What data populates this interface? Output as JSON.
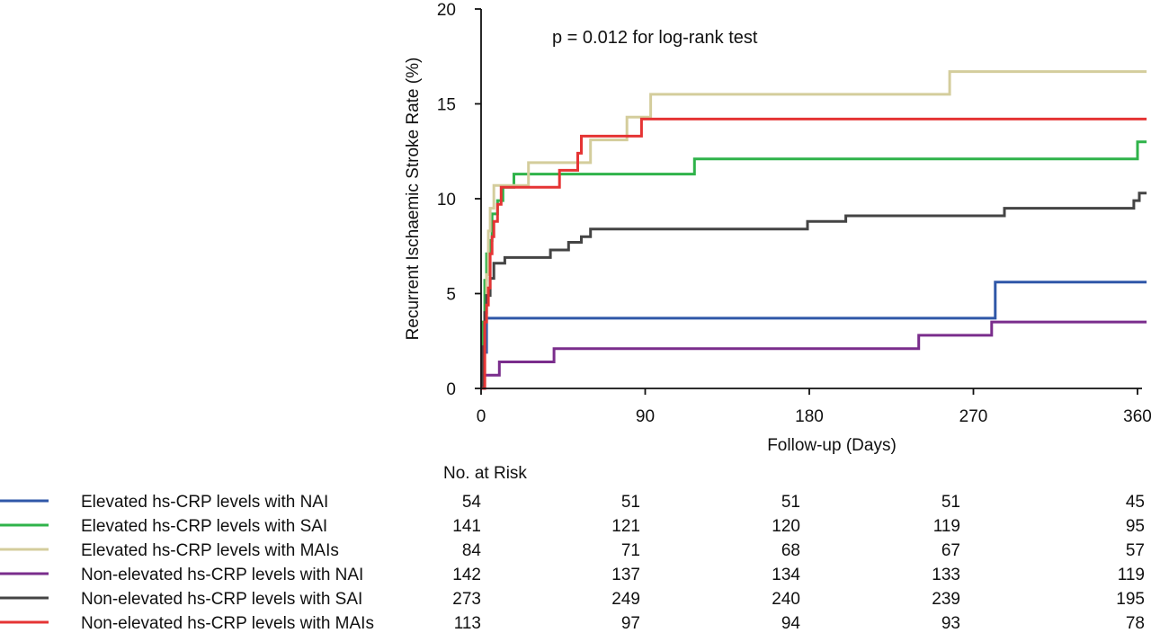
{
  "chart_data": {
    "type": "line",
    "subtype": "kaplan-meier step",
    "ylabel": "Recurrent Ischaemic Stroke Rate  (%)",
    "xlabel": "Follow-up (Days)",
    "annotation": "p = 0.012 for log-rank test",
    "xlim": [
      0,
      365
    ],
    "ylim": [
      0,
      20
    ],
    "x_ticks": [
      0,
      90,
      180,
      270,
      360
    ],
    "y_ticks": [
      0,
      5,
      10,
      15,
      20
    ],
    "grid": false,
    "legend_position": "bottom-left",
    "risk_table_title": "No. at Risk",
    "risk_table_times": [
      0,
      90,
      180,
      270,
      360
    ],
    "series": [
      {
        "name": "Elevated hs-CRP levels with NAI",
        "color": "#2f57a8",
        "at_risk": [
          54,
          51,
          51,
          51,
          45
        ],
        "points": [
          [
            0,
            0
          ],
          [
            1,
            1.9
          ],
          [
            3,
            3.7
          ],
          [
            282,
            3.7
          ],
          [
            282,
            5.6
          ],
          [
            365,
            5.6
          ]
        ]
      },
      {
        "name": "Elevated hs-CRP levels with SAI",
        "color": "#2fb34a",
        "at_risk": [
          141,
          121,
          120,
          119,
          95
        ],
        "points": [
          [
            0,
            0
          ],
          [
            1,
            3.5
          ],
          [
            2,
            5.7
          ],
          [
            3,
            7.1
          ],
          [
            5,
            7.8
          ],
          [
            6,
            9.2
          ],
          [
            7,
            9.2
          ],
          [
            9,
            9.9
          ],
          [
            12,
            10.6
          ],
          [
            18,
            11.3
          ],
          [
            117,
            11.3
          ],
          [
            117,
            12.1
          ],
          [
            360,
            12.1
          ],
          [
            360,
            13.0
          ],
          [
            365,
            13.0
          ]
        ]
      },
      {
        "name": "Elevated hs-CRP levels with MAIs",
        "color": "#d4cd9c",
        "at_risk": [
          84,
          71,
          68,
          67,
          57
        ],
        "points": [
          [
            0,
            0
          ],
          [
            2,
            3.6
          ],
          [
            3,
            6.0
          ],
          [
            4,
            8.3
          ],
          [
            5,
            9.5
          ],
          [
            7,
            10.7
          ],
          [
            26,
            10.7
          ],
          [
            26,
            11.9
          ],
          [
            60,
            11.9
          ],
          [
            60,
            13.1
          ],
          [
            80,
            13.1
          ],
          [
            80,
            14.3
          ],
          [
            93,
            14.3
          ],
          [
            93,
            15.5
          ],
          [
            257,
            15.5
          ],
          [
            257,
            16.7
          ],
          [
            365,
            16.7
          ]
        ]
      },
      {
        "name": "Non-elevated hs-CRP levels with NAI",
        "color": "#7a2d8c",
        "at_risk": [
          142,
          137,
          134,
          133,
          119
        ],
        "points": [
          [
            0,
            0
          ],
          [
            1,
            0.7
          ],
          [
            10,
            0.7
          ],
          [
            10,
            1.4
          ],
          [
            40,
            1.4
          ],
          [
            40,
            2.1
          ],
          [
            240,
            2.1
          ],
          [
            240,
            2.8
          ],
          [
            280,
            2.8
          ],
          [
            280,
            3.5
          ],
          [
            365,
            3.5
          ]
        ]
      },
      {
        "name": "Non-elevated hs-CRP levels with SAI",
        "color": "#444444",
        "at_risk": [
          273,
          249,
          240,
          239,
          195
        ],
        "points": [
          [
            0,
            0
          ],
          [
            1,
            2.2
          ],
          [
            2,
            4.0
          ],
          [
            3,
            4.9
          ],
          [
            5,
            5.8
          ],
          [
            7,
            6.6
          ],
          [
            13,
            6.9
          ],
          [
            38,
            6.9
          ],
          [
            38,
            7.3
          ],
          [
            48,
            7.3
          ],
          [
            48,
            7.7
          ],
          [
            55,
            7.7
          ],
          [
            55,
            8.0
          ],
          [
            60,
            8.0
          ],
          [
            60,
            8.4
          ],
          [
            179,
            8.4
          ],
          [
            179,
            8.8
          ],
          [
            200,
            8.8
          ],
          [
            200,
            9.1
          ],
          [
            287,
            9.1
          ],
          [
            287,
            9.5
          ],
          [
            358,
            9.5
          ],
          [
            358,
            9.9
          ],
          [
            361,
            9.9
          ],
          [
            361,
            10.3
          ],
          [
            365,
            10.3
          ]
        ]
      },
      {
        "name": "Non-elevated hs-CRP levels with MAIs",
        "color": "#e53434",
        "at_risk": [
          113,
          97,
          94,
          93,
          78
        ],
        "points": [
          [
            0,
            0
          ],
          [
            2,
            3.5
          ],
          [
            3,
            4.4
          ],
          [
            4,
            5.3
          ],
          [
            5,
            7.1
          ],
          [
            6,
            8.0
          ],
          [
            7,
            8.8
          ],
          [
            9,
            9.7
          ],
          [
            11,
            10.6
          ],
          [
            43,
            10.6
          ],
          [
            43,
            11.5
          ],
          [
            53,
            11.5
          ],
          [
            53,
            12.4
          ],
          [
            55,
            12.4
          ],
          [
            55,
            13.3
          ],
          [
            88,
            13.3
          ],
          [
            88,
            14.2
          ],
          [
            365,
            14.2
          ]
        ]
      }
    ]
  }
}
